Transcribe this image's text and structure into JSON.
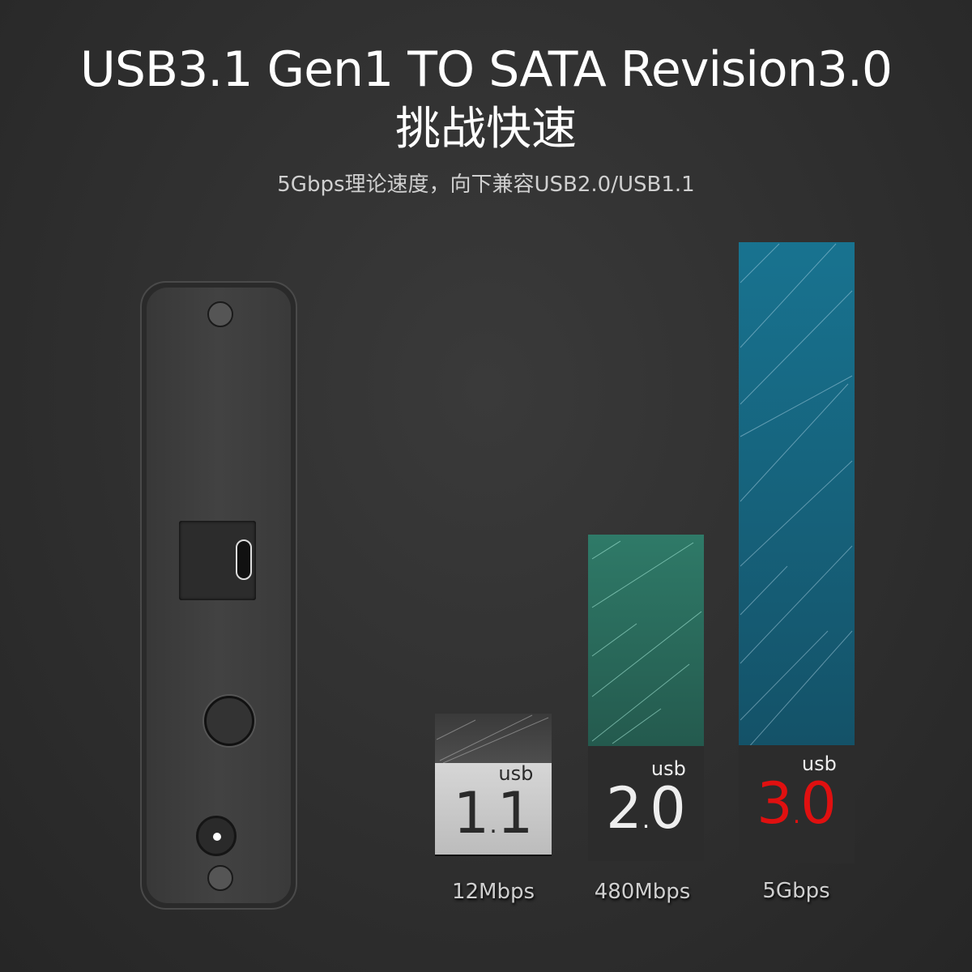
{
  "header": {
    "title": "USB3.1 Gen1 TO SATA Revision3.0",
    "title_cn": "挑战快速",
    "subtitle": "5Gbps理论速度，向下兼容USB2.0/USB1.1"
  },
  "bars": [
    {
      "usb_label": "usb",
      "major": "1",
      "minor": "1",
      "speed": "12Mbps",
      "version": 1.1,
      "color": "#4a4a4a",
      "badge_bg": "#c8c8c8",
      "digit_color": "#2a2a2a"
    },
    {
      "usb_label": "usb",
      "major": "2",
      "minor": "0",
      "speed": "480Mbps",
      "version": 2.0,
      "color": "#2b6a5c",
      "badge_bg": "#2c2c2c",
      "digit_color": "#eeeeee"
    },
    {
      "usb_label": "usb",
      "major": "3",
      "minor": "0",
      "speed": "5Gbps",
      "version": 3.0,
      "color": "#17657e",
      "badge_bg": "#2c2c2c",
      "digit_color": "#e01010"
    }
  ],
  "colors": {
    "background": "#303030",
    "accent_red": "#e01010"
  }
}
